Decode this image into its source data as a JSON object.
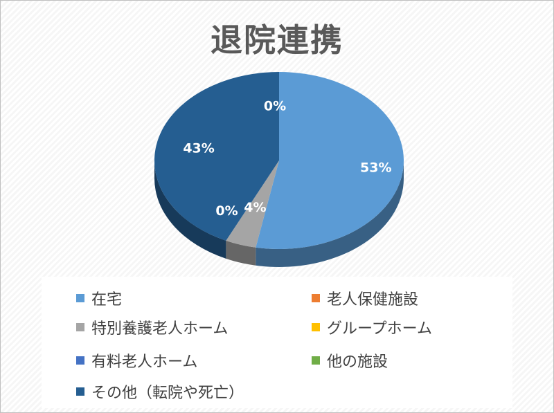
{
  "chart_data": {
    "type": "pie",
    "title": "退院連携",
    "legend_position": "bottom",
    "categories": [
      "在宅",
      "特別養護老人ホーム",
      "有料老人ホーム",
      "その他（転院や死亡）",
      "老人保健施設",
      "グループホーム",
      "他の施設"
    ],
    "values": [
      53,
      4,
      0,
      43,
      0,
      0,
      0
    ],
    "data_labels": [
      "53%",
      "4%",
      "0%",
      "43%",
      "0%",
      "",
      ""
    ],
    "colors": [
      "#5b9bd5",
      "#a5a5a5",
      "#4472c4",
      "#255e91",
      "#ed7d31",
      "#ffc000",
      "#70ad47"
    ]
  },
  "legend": {
    "items": [
      {
        "label": "在宅",
        "color": "#5b9bd5"
      },
      {
        "label": "老人保健施設",
        "color": "#ed7d31"
      },
      {
        "label": "特別養護老人ホーム",
        "color": "#a5a5a5"
      },
      {
        "label": "グループホーム",
        "color": "#ffc000"
      },
      {
        "label": "有料老人ホーム",
        "color": "#4472c4"
      },
      {
        "label": "他の施設",
        "color": "#70ad47"
      },
      {
        "label": "その他（転院や死亡）",
        "color": "#255e91"
      }
    ]
  }
}
